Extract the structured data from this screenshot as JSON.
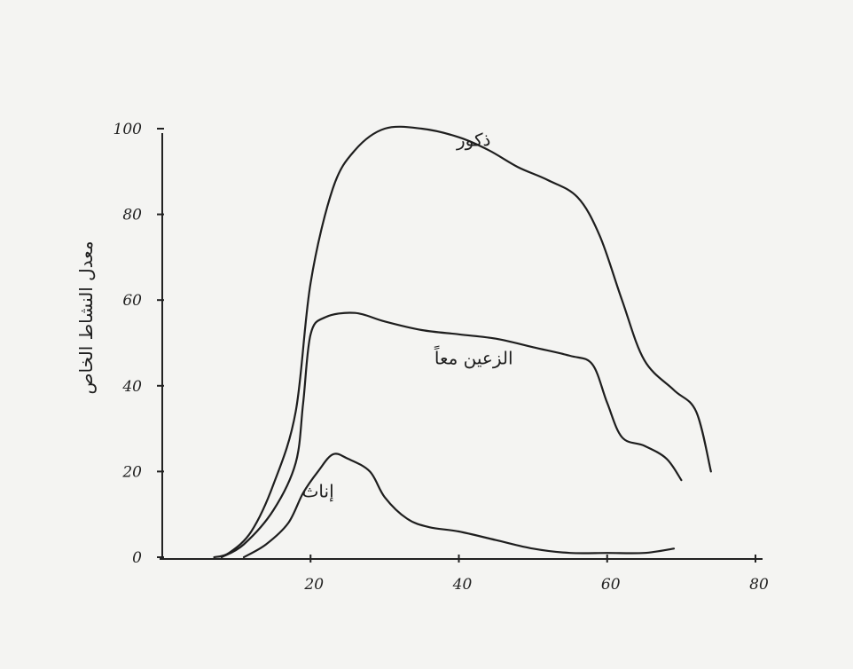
{
  "chart_data": {
    "type": "line",
    "title": "",
    "xlabel": "",
    "ylabel": "معدل النشاط الخاص",
    "xlim": [
      0,
      80
    ],
    "ylim": [
      0,
      100
    ],
    "x_ticks": [
      "20",
      "40",
      "60",
      "80"
    ],
    "y_ticks": [
      "0",
      "20",
      "40",
      "60",
      "80",
      "100"
    ],
    "grid": false,
    "legend": "none (labels drawn on curves)",
    "series": [
      {
        "name": "ذكور",
        "color": "#1e1e1e",
        "points": [
          [
            7,
            0
          ],
          [
            9,
            1
          ],
          [
            12,
            6
          ],
          [
            15,
            17
          ],
          [
            18,
            34
          ],
          [
            20,
            64
          ],
          [
            23,
            86
          ],
          [
            26,
            95
          ],
          [
            30,
            100
          ],
          [
            35,
            100
          ],
          [
            40,
            98
          ],
          [
            44,
            95
          ],
          [
            48,
            91
          ],
          [
            52,
            88
          ],
          [
            56,
            84
          ],
          [
            59,
            75
          ],
          [
            62,
            60
          ],
          [
            65,
            46
          ],
          [
            69,
            39
          ],
          [
            72,
            34
          ],
          [
            74,
            20
          ]
        ]
      },
      {
        "name": "الزعين معاً",
        "color": "#1e1e1e",
        "points": [
          [
            8,
            0
          ],
          [
            11,
            3
          ],
          [
            15,
            11
          ],
          [
            18,
            22
          ],
          [
            19,
            36
          ],
          [
            20,
            52
          ],
          [
            22,
            56
          ],
          [
            26,
            57
          ],
          [
            30,
            55
          ],
          [
            35,
            53
          ],
          [
            40,
            52
          ],
          [
            45,
            51
          ],
          [
            50,
            49
          ],
          [
            55,
            47
          ],
          [
            58,
            45
          ],
          [
            60,
            36
          ],
          [
            62,
            28
          ],
          [
            65,
            26
          ],
          [
            68,
            23
          ],
          [
            70,
            18
          ]
        ]
      },
      {
        "name": "إناث",
        "color": "#1e1e1e",
        "points": [
          [
            11,
            0
          ],
          [
            14,
            3
          ],
          [
            17,
            8
          ],
          [
            19,
            15
          ],
          [
            21,
            20
          ],
          [
            23,
            24
          ],
          [
            25,
            23
          ],
          [
            28,
            20
          ],
          [
            30,
            14
          ],
          [
            33,
            9
          ],
          [
            36,
            7
          ],
          [
            40,
            6
          ],
          [
            45,
            4
          ],
          [
            50,
            2
          ],
          [
            55,
            1
          ],
          [
            60,
            1
          ],
          [
            65,
            1
          ],
          [
            69,
            2
          ]
        ]
      }
    ],
    "annotations": [
      {
        "text": "ذكور",
        "x": 42,
        "y": 96
      },
      {
        "text": "الزعين معاً",
        "x": 42,
        "y": 45
      },
      {
        "text": "إناث",
        "x": 21,
        "y": 14
      }
    ]
  }
}
